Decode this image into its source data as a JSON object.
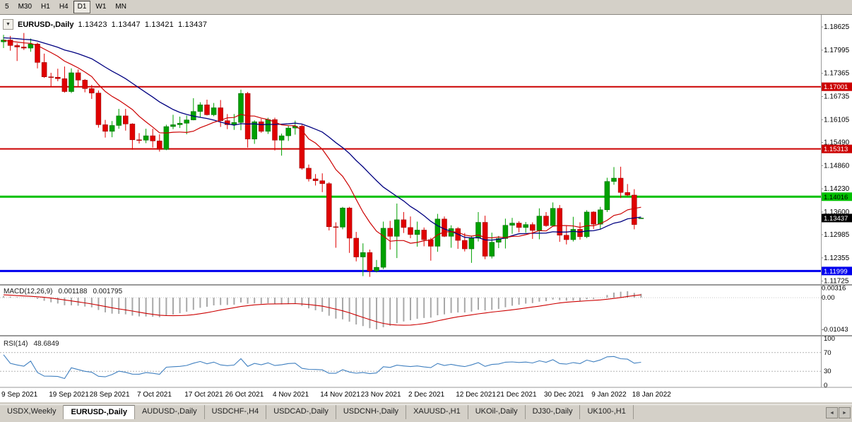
{
  "toolbar": {
    "periods": [
      {
        "label": "5",
        "active": false
      },
      {
        "label": "M30",
        "active": false
      },
      {
        "label": "H1",
        "active": false
      },
      {
        "label": "H4",
        "active": false
      },
      {
        "label": "D1",
        "active": true
      },
      {
        "label": "W1",
        "active": false
      },
      {
        "label": "MN",
        "active": false
      }
    ]
  },
  "chart_header": {
    "symbol": "EURUSD-,Daily",
    "open": "1.13423",
    "high": "1.13447",
    "low": "1.13421",
    "close": "1.13437"
  },
  "macd": {
    "title": "MACD(12,26,9)",
    "value_main": "0.001188",
    "value_signal": "0.001795",
    "scale": [
      {
        "label": "0.00316",
        "value": 0.00316
      },
      {
        "label": "0.00",
        "value": 0
      },
      {
        "label": "-0.01043",
        "value": -0.01043
      }
    ]
  },
  "rsi": {
    "title": "RSI(14)",
    "value": "48.6849",
    "scale": [
      {
        "label": "100",
        "value": 100
      },
      {
        "label": "70",
        "value": 70
      },
      {
        "label": "30",
        "value": 30
      },
      {
        "label": "0",
        "value": 0
      }
    ],
    "levels": [
      70,
      30
    ]
  },
  "y_axis": {
    "labels": [
      "1.18625",
      "1.17995",
      "1.17365",
      "1.16735",
      "1.16105",
      "1.15490",
      "1.14860",
      "1.14230",
      "1.13600",
      "1.12985",
      "1.12355",
      "1.11725"
    ]
  },
  "levels": [
    {
      "label": "1.17001",
      "price": 1.17001,
      "color": "#cc0000",
      "width": 2,
      "text_color": "#ffffff"
    },
    {
      "label": "1.15313",
      "price": 1.15313,
      "color": "#cc0000",
      "width": 2,
      "text_color": "#ffffff"
    },
    {
      "label": "1.14016",
      "price": 1.14016,
      "color": "#00c000",
      "width": 3,
      "text_color": "#000000"
    },
    {
      "label": "1.11999",
      "price": 1.11999,
      "color": "#0000ee",
      "width": 3,
      "text_color": "#ffffff"
    }
  ],
  "current_price": {
    "label": "1.13437",
    "price": 1.13437,
    "color": "#000000",
    "text_color": "#ffffff"
  },
  "x_axis": {
    "labels": [
      {
        "label": "9 Sep 2021",
        "index": 0
      },
      {
        "label": "19 Sep 2021",
        "index": 7
      },
      {
        "label": "28 Sep 2021",
        "index": 13
      },
      {
        "label": "7 Oct 2021",
        "index": 20
      },
      {
        "label": "17 Oct 2021",
        "index": 27
      },
      {
        "label": "26 Oct 2021",
        "index": 33
      },
      {
        "label": "4 Nov 2021",
        "index": 40
      },
      {
        "label": "14 Nov 2021",
        "index": 47
      },
      {
        "label": "23 Nov 2021",
        "index": 53
      },
      {
        "label": "2 Dec 2021",
        "index": 60
      },
      {
        "label": "12 Dec 2021",
        "index": 67
      },
      {
        "label": "21 Dec 2021",
        "index": 73
      },
      {
        "label": "30 Dec 2021",
        "index": 80
      },
      {
        "label": "9 Jan 2022",
        "index": 87
      },
      {
        "label": "18 Jan 2022",
        "index": 93
      }
    ]
  },
  "tabs": [
    {
      "label": "USDX,Weekly",
      "active": false
    },
    {
      "label": "EURUSD-,Daily",
      "active": true
    },
    {
      "label": "AUDUSD-,Daily",
      "active": false
    },
    {
      "label": "USDCHF-,H4",
      "active": false
    },
    {
      "label": "USDCAD-,Daily",
      "active": false
    },
    {
      "label": "USDCNH-,Daily",
      "active": false
    },
    {
      "label": "XAUUSD-,H1",
      "active": false
    },
    {
      "label": "UKOil-,Daily",
      "active": false
    },
    {
      "label": "DJ30-,Daily",
      "active": false
    },
    {
      "label": "UK100-,H1",
      "active": false
    }
  ],
  "tab_scroll": {
    "left_icon": "◄",
    "right_icon": "►"
  },
  "colors": {
    "bull": "#00a000",
    "bull_border": "#005c00",
    "bear": "#e00000",
    "bear_border": "#8c0000",
    "ma_fast": "#cc0000",
    "ma_slow": "#000080",
    "macd_histogram": "#a8a8a8",
    "macd_signal": "#cc0000",
    "rsi_line": "#4080c0",
    "axis_text": "#000000"
  },
  "chart_data": {
    "type": "candlestick",
    "symbol": "EURUSD",
    "timeframe": "Daily",
    "title": "EURUSD-,Daily",
    "ylim": [
      1.1168,
      1.1878
    ],
    "macd_ylim": [
      -0.0118,
      0.0035
    ],
    "indicators": {
      "ma_fast_period": 10,
      "ma_slow_period": 21,
      "macd": [
        12,
        26,
        9
      ],
      "rsi_period": 14
    },
    "candles_ohlc": [
      [
        1.1822,
        1.1841,
        1.1805,
        1.1827
      ],
      [
        1.1827,
        1.1838,
        1.1798,
        1.1812
      ],
      [
        1.1812,
        1.1818,
        1.177,
        1.1808
      ],
      [
        1.1808,
        1.1846,
        1.18,
        1.1805
      ],
      [
        1.1805,
        1.1831,
        1.1795,
        1.1816
      ],
      [
        1.1816,
        1.182,
        1.175,
        1.1766
      ],
      [
        1.1766,
        1.179,
        1.1724,
        1.1727
      ],
      [
        1.1727,
        1.1738,
        1.17,
        1.1726
      ],
      [
        1.1726,
        1.1749,
        1.1715,
        1.1722
      ],
      [
        1.1722,
        1.1755,
        1.1684,
        1.1687
      ],
      [
        1.1687,
        1.175,
        1.1683,
        1.1738
      ],
      [
        1.1738,
        1.1747,
        1.1701,
        1.1718
      ],
      [
        1.1718,
        1.1721,
        1.1685,
        1.1695
      ],
      [
        1.1695,
        1.1705,
        1.1667,
        1.1683
      ],
      [
        1.1683,
        1.169,
        1.1589,
        1.1597
      ],
      [
        1.1597,
        1.161,
        1.1562,
        1.1579
      ],
      [
        1.1579,
        1.1607,
        1.1563,
        1.1595
      ],
      [
        1.1595,
        1.164,
        1.1586,
        1.1621
      ],
      [
        1.1621,
        1.164,
        1.1581,
        1.1599
      ],
      [
        1.1599,
        1.1601,
        1.1529,
        1.1556
      ],
      [
        1.1556,
        1.1574,
        1.1546,
        1.1555
      ],
      [
        1.1555,
        1.1586,
        1.1547,
        1.1567
      ],
      [
        1.1567,
        1.1586,
        1.1535,
        1.1553
      ],
      [
        1.1553,
        1.1571,
        1.1524,
        1.153
      ],
      [
        1.153,
        1.1597,
        1.1528,
        1.1592
      ],
      [
        1.1592,
        1.1624,
        1.1585,
        1.1597
      ],
      [
        1.1597,
        1.1619,
        1.1588,
        1.1601
      ],
      [
        1.1601,
        1.1622,
        1.1571,
        1.161
      ],
      [
        1.161,
        1.1669,
        1.1609,
        1.1633
      ],
      [
        1.1633,
        1.1658,
        1.1617,
        1.1651
      ],
      [
        1.1651,
        1.1665,
        1.1622,
        1.1624
      ],
      [
        1.1624,
        1.1656,
        1.162,
        1.1643
      ],
      [
        1.1643,
        1.1664,
        1.1591,
        1.1608
      ],
      [
        1.1608,
        1.1626,
        1.1585,
        1.1597
      ],
      [
        1.1597,
        1.1626,
        1.1583,
        1.1603
      ],
      [
        1.1603,
        1.1692,
        1.1582,
        1.1682
      ],
      [
        1.1682,
        1.1686,
        1.1535,
        1.1558
      ],
      [
        1.1558,
        1.1609,
        1.1545,
        1.1605
      ],
      [
        1.1605,
        1.1613,
        1.1575,
        1.1579
      ],
      [
        1.1579,
        1.1616,
        1.1572,
        1.1611
      ],
      [
        1.1611,
        1.1616,
        1.1527,
        1.1555
      ],
      [
        1.1555,
        1.1573,
        1.1513,
        1.1567
      ],
      [
        1.1567,
        1.1595,
        1.1553,
        1.1588
      ],
      [
        1.1588,
        1.1608,
        1.157,
        1.1593
      ],
      [
        1.1593,
        1.1597,
        1.1475,
        1.1479
      ],
      [
        1.1479,
        1.1489,
        1.1443,
        1.145
      ],
      [
        1.145,
        1.1463,
        1.1432,
        1.1445
      ],
      [
        1.1445,
        1.1465,
        1.1414,
        1.1437
      ],
      [
        1.1437,
        1.1441,
        1.131,
        1.132
      ],
      [
        1.132,
        1.1332,
        1.1263,
        1.1319
      ],
      [
        1.1319,
        1.1374,
        1.1313,
        1.1371
      ],
      [
        1.1371,
        1.1374,
        1.1249,
        1.1289
      ],
      [
        1.1289,
        1.1306,
        1.1226,
        1.1238
      ],
      [
        1.1238,
        1.1275,
        1.1186,
        1.125
      ],
      [
        1.125,
        1.1258,
        1.1184,
        1.12
      ],
      [
        1.12,
        1.123,
        1.1196,
        1.121
      ],
      [
        1.121,
        1.1334,
        1.1205,
        1.1316
      ],
      [
        1.1316,
        1.1336,
        1.1258,
        1.1294
      ],
      [
        1.1294,
        1.1383,
        1.1235,
        1.1339
      ],
      [
        1.1339,
        1.136,
        1.1303,
        1.1318
      ],
      [
        1.1318,
        1.1348,
        1.1289,
        1.1299
      ],
      [
        1.1299,
        1.1334,
        1.1266,
        1.1311
      ],
      [
        1.1311,
        1.1318,
        1.1267,
        1.1285
      ],
      [
        1.1285,
        1.129,
        1.1228,
        1.1267
      ],
      [
        1.1267,
        1.1355,
        1.1252,
        1.1341
      ],
      [
        1.1341,
        1.1348,
        1.1292,
        1.1294
      ],
      [
        1.1294,
        1.1324,
        1.1263,
        1.1315
      ],
      [
        1.1315,
        1.1319,
        1.126,
        1.1283
      ],
      [
        1.1283,
        1.1303,
        1.1253,
        1.126
      ],
      [
        1.126,
        1.1296,
        1.1222,
        1.1289
      ],
      [
        1.1289,
        1.136,
        1.128,
        1.1332
      ],
      [
        1.1332,
        1.135,
        1.1232,
        1.124
      ],
      [
        1.124,
        1.1304,
        1.1234,
        1.1278
      ],
      [
        1.1278,
        1.1295,
        1.1262,
        1.1288
      ],
      [
        1.1288,
        1.1342,
        1.1261,
        1.1324
      ],
      [
        1.1324,
        1.1344,
        1.1301,
        1.133
      ],
      [
        1.133,
        1.1335,
        1.1305,
        1.1318
      ],
      [
        1.1318,
        1.1333,
        1.1304,
        1.1326
      ],
      [
        1.1326,
        1.1332,
        1.1287,
        1.131
      ],
      [
        1.131,
        1.137,
        1.1286,
        1.1349
      ],
      [
        1.1349,
        1.136,
        1.132,
        1.1323
      ],
      [
        1.1323,
        1.1386,
        1.1321,
        1.137
      ],
      [
        1.137,
        1.1379,
        1.1279,
        1.1297
      ],
      [
        1.1297,
        1.1323,
        1.1272,
        1.1285
      ],
      [
        1.1285,
        1.1347,
        1.128,
        1.1313
      ],
      [
        1.1313,
        1.1332,
        1.1285,
        1.1293
      ],
      [
        1.1293,
        1.1365,
        1.1289,
        1.136
      ],
      [
        1.136,
        1.1362,
        1.1314,
        1.1327
      ],
      [
        1.1327,
        1.1374,
        1.1313,
        1.1366
      ],
      [
        1.1366,
        1.1453,
        1.136,
        1.1443
      ],
      [
        1.1443,
        1.1482,
        1.1434,
        1.1452
      ],
      [
        1.1452,
        1.1483,
        1.1398,
        1.1413
      ],
      [
        1.1413,
        1.1436,
        1.1403,
        1.1406
      ],
      [
        1.1406,
        1.1422,
        1.1313,
        1.1326
      ],
      [
        1.13423,
        1.13447,
        1.13421,
        1.13437
      ]
    ],
    "preroll_closes": [
      1.1755,
      1.176,
      1.1766,
      1.1771,
      1.1776,
      1.1782,
      1.1787,
      1.1792,
      1.1798,
      1.1803,
      1.1808,
      1.1814,
      1.1819,
      1.1824,
      1.183,
      1.1833,
      1.1836,
      1.1839,
      1.1841,
      1.1843,
      1.1845,
      1.1843,
      1.1841,
      1.1839,
      1.1837,
      1.1835,
      1.1833,
      1.1831,
      1.1829,
      1.1827,
      1.1825,
      1.1823,
      1.1822,
      1.1821,
      1.182
    ]
  }
}
